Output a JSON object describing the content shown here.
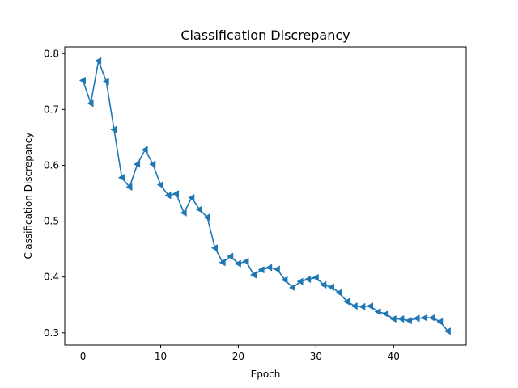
{
  "chart_data": {
    "type": "line",
    "title": "Classification Discrepancy",
    "xlabel": "Epoch",
    "ylabel": "Classification Discrepancy",
    "xlim": [
      -2.35,
      49.35
    ],
    "ylim": [
      0.278,
      0.812
    ],
    "xticks": [
      0,
      10,
      20,
      30,
      40
    ],
    "yticks": [
      0.3,
      0.4,
      0.5,
      0.6,
      0.7,
      0.8
    ],
    "ytick_labels": [
      "0.3",
      "0.4",
      "0.5",
      "0.6",
      "0.7",
      "0.8"
    ],
    "grid": false,
    "marker": "triangle-left",
    "series": [
      {
        "color": "#1f77b4",
        "x": [
          0,
          1,
          2,
          3,
          4,
          5,
          6,
          7,
          8,
          9,
          10,
          11,
          12,
          13,
          14,
          15,
          16,
          17,
          18,
          19,
          20,
          21,
          22,
          23,
          24,
          25,
          26,
          27,
          28,
          29,
          30,
          31,
          32,
          33,
          34,
          35,
          36,
          37,
          38,
          39,
          40,
          41,
          42,
          43,
          44,
          45,
          46,
          47
        ],
        "y": [
          0.752,
          0.711,
          0.787,
          0.75,
          0.664,
          0.578,
          0.561,
          0.602,
          0.628,
          0.602,
          0.565,
          0.546,
          0.549,
          0.515,
          0.542,
          0.521,
          0.507,
          0.452,
          0.426,
          0.437,
          0.424,
          0.428,
          0.404,
          0.413,
          0.417,
          0.414,
          0.395,
          0.381,
          0.392,
          0.396,
          0.399,
          0.386,
          0.382,
          0.372,
          0.356,
          0.348,
          0.347,
          0.348,
          0.338,
          0.334,
          0.325,
          0.325,
          0.322,
          0.326,
          0.327,
          0.327,
          0.32,
          0.303
        ]
      }
    ]
  }
}
